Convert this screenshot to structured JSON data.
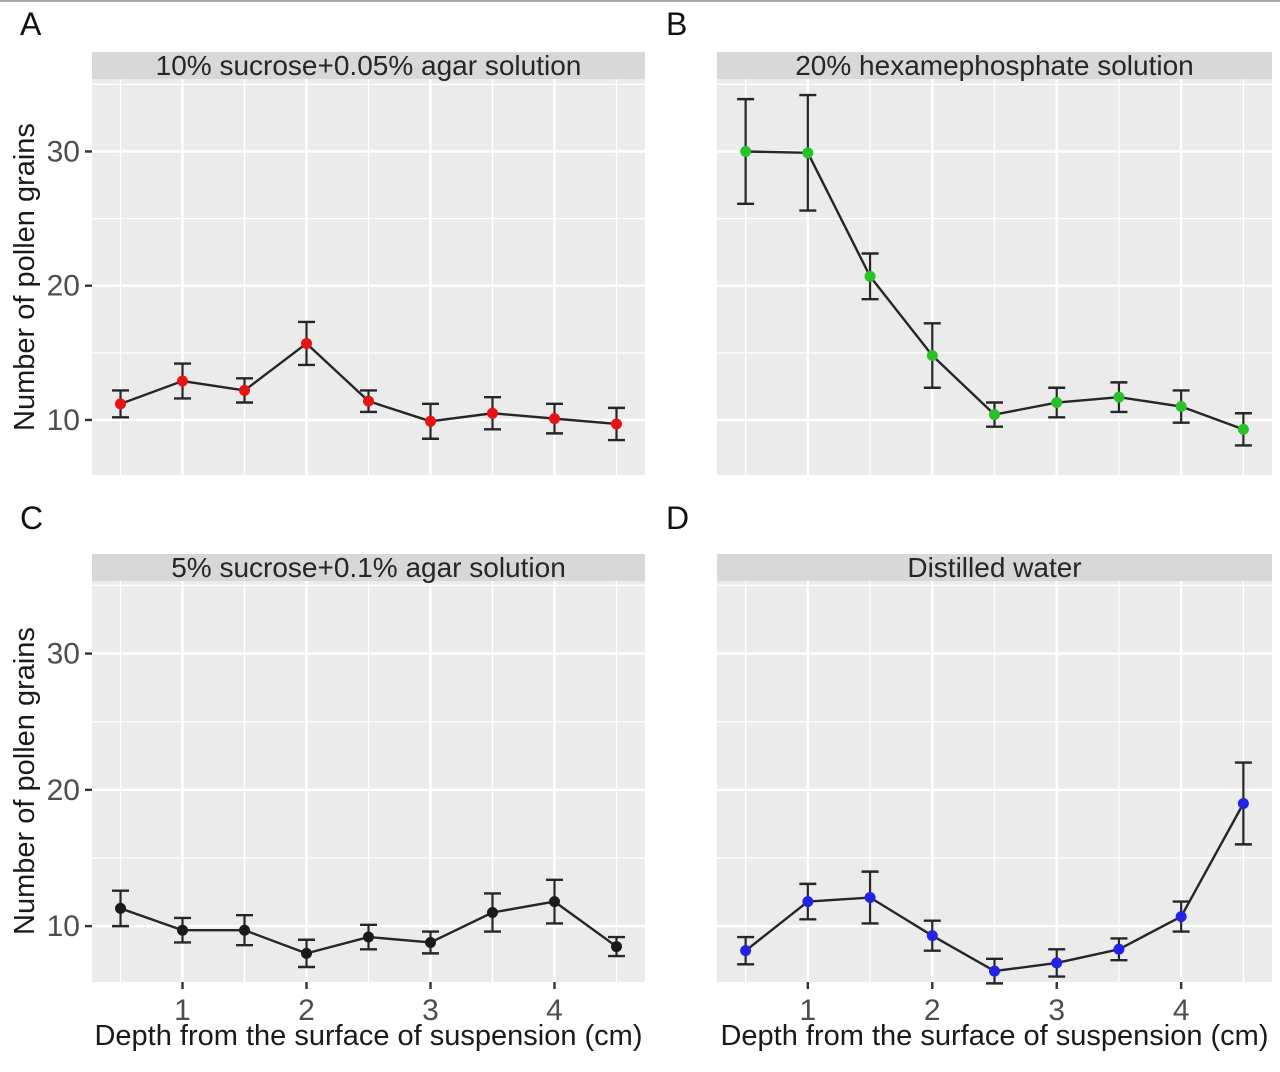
{
  "figure": {
    "panel_letters": [
      "A",
      "B",
      "C",
      "D"
    ],
    "y_axis_title": "Number of pollen grains",
    "x_axis_title": "Depth from the surface of suspension (cm)"
  },
  "colors": {
    "strip_background": "#d8d8d8",
    "panel_background": "#ebebeb",
    "gridline": "#ffffff",
    "line_and_errorbar": "#262626",
    "tick_label": "#4d4d4d",
    "tick_mark": "#333333",
    "point_red": "#e81313",
    "point_green": "#27c227",
    "point_black": "#1a1a1a",
    "point_blue": "#2323e6"
  },
  "chart_data": [
    {
      "type": "line",
      "panel": "A",
      "title": "10% sucrose+0.05% agar solution",
      "point_color": "#e81313",
      "x": [
        0.5,
        1,
        1.5,
        2,
        2.5,
        3,
        3.5,
        4,
        4.5
      ],
      "y": [
        11.2,
        12.9,
        12.2,
        15.7,
        11.4,
        9.9,
        10.5,
        10.1,
        9.7
      ],
      "yerr": [
        1.0,
        1.3,
        0.9,
        1.6,
        0.8,
        1.3,
        1.2,
        1.1,
        1.2
      ],
      "xlabel": "Depth from the surface of suspension (cm)",
      "ylabel": "Number of pollen grains",
      "xticks": [
        1,
        2,
        3,
        4
      ],
      "yticks": [
        10,
        20,
        30
      ],
      "xticks_minor": [
        0.5,
        1.5,
        2.5,
        3.5,
        4.5
      ],
      "yticks_minor": [
        15,
        25,
        35
      ],
      "xlim": [
        0.27,
        4.73
      ],
      "ylim": [
        5.9,
        35.4
      ],
      "grid": true,
      "legend": false
    },
    {
      "type": "line",
      "panel": "B",
      "title": "20% hexamephosphate solution",
      "point_color": "#27c227",
      "x": [
        0.5,
        1,
        1.5,
        2,
        2.5,
        3,
        3.5,
        4,
        4.5
      ],
      "y": [
        30.0,
        29.9,
        20.7,
        14.8,
        10.4,
        11.3,
        11.7,
        11.0,
        9.3
      ],
      "yerr": [
        3.9,
        4.3,
        1.7,
        2.4,
        0.9,
        1.1,
        1.1,
        1.2,
        1.2
      ],
      "xlabel": "Depth from the surface of suspension (cm)",
      "ylabel": "Number of pollen grains",
      "xticks": [
        1,
        2,
        3,
        4
      ],
      "yticks": [
        10,
        20,
        30
      ],
      "xticks_minor": [
        0.5,
        1.5,
        2.5,
        3.5,
        4.5
      ],
      "yticks_minor": [
        15,
        25,
        35
      ],
      "xlim": [
        0.27,
        4.73
      ],
      "ylim": [
        5.9,
        35.4
      ],
      "grid": true,
      "legend": false
    },
    {
      "type": "line",
      "panel": "C",
      "title": "5% sucrose+0.1% agar solution",
      "point_color": "#1a1a1a",
      "x": [
        0.5,
        1,
        1.5,
        2,
        2.5,
        3,
        3.5,
        4,
        4.5
      ],
      "y": [
        11.3,
        9.7,
        9.7,
        8.0,
        9.2,
        8.8,
        11.0,
        11.8,
        8.5
      ],
      "yerr": [
        1.3,
        0.9,
        1.1,
        1.0,
        0.9,
        0.8,
        1.4,
        1.6,
        0.7
      ],
      "xlabel": "Depth from the surface of suspension (cm)",
      "ylabel": "Number of pollen grains",
      "xticks": [
        1,
        2,
        3,
        4
      ],
      "yticks": [
        10,
        20,
        30
      ],
      "xticks_minor": [
        0.5,
        1.5,
        2.5,
        3.5,
        4.5
      ],
      "yticks_minor": [
        15,
        25,
        35
      ],
      "xlim": [
        0.27,
        4.73
      ],
      "ylim": [
        5.9,
        35.4
      ],
      "grid": true,
      "legend": false
    },
    {
      "type": "line",
      "panel": "D",
      "title": "Distilled water",
      "point_color": "#2323e6",
      "x": [
        0.5,
        1,
        1.5,
        2,
        2.5,
        3,
        3.5,
        4,
        4.5
      ],
      "y": [
        8.2,
        11.8,
        12.1,
        9.3,
        6.7,
        7.3,
        8.3,
        10.7,
        19.0
      ],
      "yerr": [
        1.0,
        1.3,
        1.9,
        1.1,
        0.9,
        1.0,
        0.8,
        1.1,
        3.0
      ],
      "xlabel": "Depth from the surface of suspension (cm)",
      "ylabel": "Number of pollen grains",
      "xticks": [
        1,
        2,
        3,
        4
      ],
      "yticks": [
        10,
        20,
        30
      ],
      "xticks_minor": [
        0.5,
        1.5,
        2.5,
        3.5,
        4.5
      ],
      "yticks_minor": [
        15,
        25,
        35
      ],
      "xlim": [
        0.27,
        4.73
      ],
      "ylim": [
        5.9,
        35.4
      ],
      "grid": true,
      "legend": false
    }
  ]
}
